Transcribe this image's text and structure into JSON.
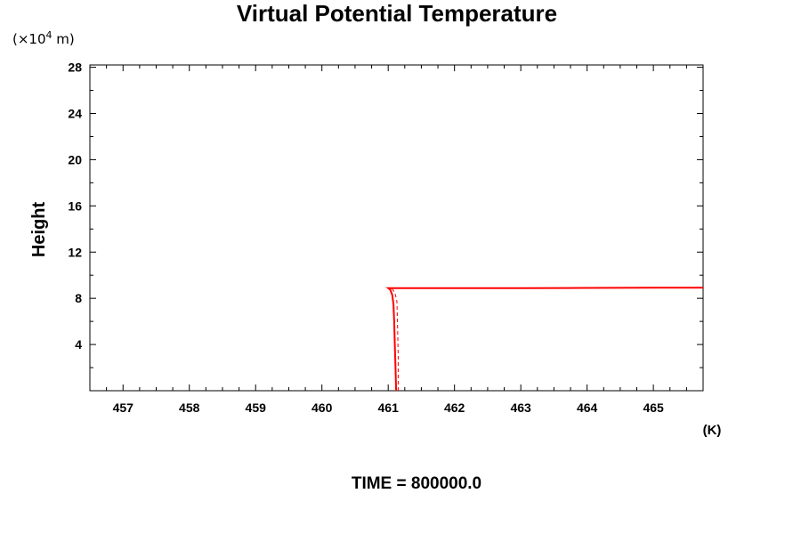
{
  "chart_data": {
    "type": "line",
    "title": "Virtual Potential Temperature",
    "y_units": "(×10",
    "y_units_exp": "4",
    "y_units_tail": " m)",
    "ylabel": "Height",
    "x_units": "(K)",
    "footer": "TIME = 800000.0",
    "xlim": [
      456.5,
      465.75
    ],
    "ylim": [
      0,
      28.2
    ],
    "x_ticks": [
      457,
      458,
      459,
      460,
      461,
      462,
      463,
      464,
      465
    ],
    "y_ticks": [
      4,
      8,
      12,
      16,
      20,
      24,
      28
    ],
    "grid": false,
    "series": [
      {
        "color": "#ff0000",
        "style": "solid",
        "x": [
          461.12,
          461.11,
          461.1,
          461.09,
          461.08,
          461.06,
          461.03,
          461.0,
          462.0,
          463.0,
          464.0,
          465.0,
          465.75
        ],
        "y": [
          0.0,
          2.0,
          4.0,
          6.0,
          7.5,
          8.3,
          8.75,
          8.88,
          8.88,
          8.88,
          8.9,
          8.92,
          8.92
        ]
      },
      {
        "color": "#ff0000",
        "style": "dashed",
        "x": [
          461.15,
          461.15,
          461.14,
          461.13,
          461.1,
          461.05
        ],
        "y": [
          0.0,
          3.0,
          6.0,
          7.8,
          8.5,
          8.88
        ]
      }
    ]
  }
}
